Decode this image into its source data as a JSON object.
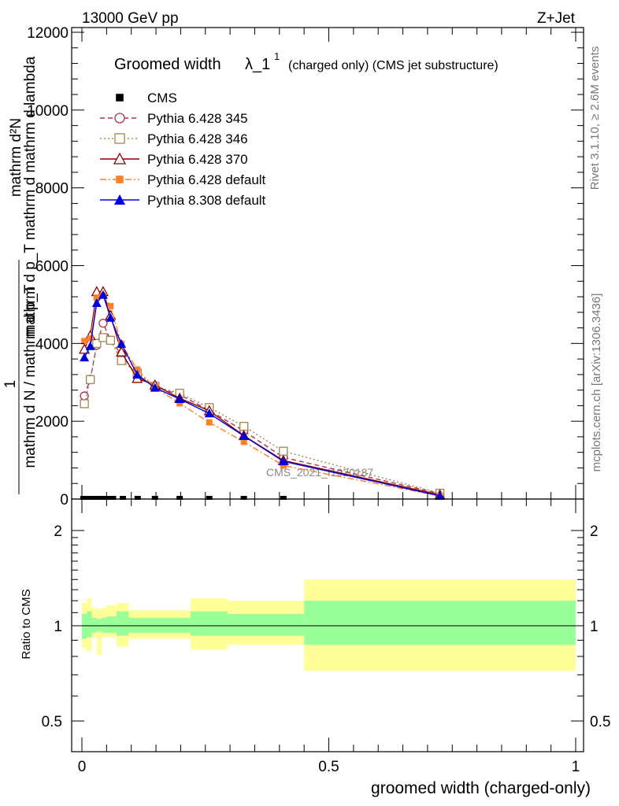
{
  "header": {
    "left": "13000 GeV pp",
    "right": "Z+Jet"
  },
  "side_labels": {
    "rivet": "Rivet 3.1.10, ≥ 2.6M events",
    "mcplots": "mcplots.cern.ch [arXiv:1306.3436]"
  },
  "watermark": "CMS_2021_I1920187",
  "chart_data": [
    {
      "type": "line",
      "title": "Groomed width",
      "title_symbol": "λ_1",
      "title_superscript": "1",
      "title_suffix": "(charged only) (CMS jet substructure)",
      "ylabel_top": "mathrm d²N",
      "ylabel_mid": "mathrm d p_T mathrm d mathrm d lambda",
      "ylabel_one": "1",
      "ylabel_bottom": "mathrm d N / mathrm d p_T",
      "yticks": [
        "0",
        "2000",
        "4000",
        "6000",
        "8000",
        "10000",
        "12000"
      ],
      "ylim": [
        0,
        12000
      ],
      "xlim": [
        -0.02,
        1.03
      ],
      "legend_position": "top-left",
      "series": [
        {
          "name": "CMS",
          "color": "#000000",
          "marker": "square-filled",
          "line": "none",
          "x": [
            0.003,
            0.013,
            0.023,
            0.033,
            0.043,
            0.053,
            0.063,
            0.083,
            0.113,
            0.148,
            0.198,
            0.258,
            0.328,
            0.408
          ],
          "y": [
            0,
            0,
            0,
            0,
            0,
            0,
            0,
            0,
            0,
            0,
            0,
            0,
            0,
            0
          ]
        },
        {
          "name": "Pythia 6.428 345",
          "color": "#b03050",
          "marker": "circle-open",
          "line": "dash",
          "x": [
            0.005,
            0.017,
            0.03,
            0.043,
            0.058,
            0.08,
            0.112,
            0.148,
            0.198,
            0.258,
            0.328,
            0.408,
            0.725
          ],
          "y": [
            2650,
            3080,
            3950,
            4520,
            4080,
            3720,
            3150,
            2890,
            2680,
            2280,
            1750,
            1070,
            140
          ]
        },
        {
          "name": "Pythia 6.428 346",
          "color": "#a08850",
          "marker": "square-open",
          "line": "dot",
          "x": [
            0.005,
            0.017,
            0.03,
            0.043,
            0.058,
            0.08,
            0.112,
            0.148,
            0.198,
            0.258,
            0.328,
            0.408,
            0.725
          ],
          "y": [
            2450,
            3070,
            4000,
            4150,
            4080,
            3560,
            3240,
            2900,
            2720,
            2350,
            1870,
            1230,
            150
          ]
        },
        {
          "name": "Pythia 6.428 370",
          "color": "#8b0000",
          "marker": "triangle-open",
          "line": "solid",
          "x": [
            0.005,
            0.017,
            0.03,
            0.043,
            0.058,
            0.08,
            0.112,
            0.148,
            0.198,
            0.258,
            0.328,
            0.408,
            0.725
          ],
          "y": [
            3850,
            4200,
            5330,
            5330,
            4720,
            3780,
            3100,
            2930,
            2590,
            2270,
            1630,
            990,
            110
          ]
        },
        {
          "name": "Pythia 6.428 default",
          "color": "#ff7f2a",
          "marker": "square-filled",
          "line": "dashdot",
          "x": [
            0.005,
            0.017,
            0.03,
            0.043,
            0.058,
            0.08,
            0.112,
            0.148,
            0.198,
            0.258,
            0.328,
            0.408,
            0.725
          ],
          "y": [
            4060,
            4130,
            5180,
            5230,
            4960,
            3990,
            3330,
            2860,
            2460,
            1970,
            1470,
            860,
            80
          ]
        },
        {
          "name": "Pythia 8.308 default",
          "color": "#0000dd",
          "marker": "triangle-filled",
          "line": "solid",
          "x": [
            0.005,
            0.017,
            0.03,
            0.043,
            0.058,
            0.08,
            0.112,
            0.148,
            0.198,
            0.258,
            0.328,
            0.408,
            0.725
          ],
          "y": [
            3640,
            3930,
            5040,
            5250,
            4660,
            3990,
            3200,
            2860,
            2570,
            2200,
            1620,
            970,
            80
          ]
        }
      ]
    },
    {
      "type": "area",
      "ylabel": "Ratio to CMS",
      "xlabel": "groomed width (charged-only)",
      "yticks": [
        "0.5",
        "1",
        "2"
      ],
      "xticks": [
        "0",
        "0.5",
        "1"
      ],
      "ylim": [
        0.42,
        2.35
      ],
      "y_scale": "log",
      "xlim": [
        -0.02,
        1.03
      ],
      "reference_line": 1,
      "bins": [
        0,
        0.01,
        0.02,
        0.03,
        0.04,
        0.05,
        0.07,
        0.095,
        0.13,
        0.22,
        0.295,
        0.45,
        1.0
      ],
      "band_inner": {
        "color": "#99ff99",
        "lower": [
          0.91,
          0.92,
          0.95,
          0.96,
          0.95,
          0.95,
          0.93,
          0.95,
          0.95,
          0.93,
          0.93,
          0.87
        ],
        "upper": [
          1.09,
          1.11,
          1.06,
          1.05,
          1.06,
          1.07,
          1.11,
          1.06,
          1.06,
          1.11,
          1.09,
          1.2
        ]
      },
      "band_outer": {
        "color": "#ffff99",
        "lower": [
          0.85,
          0.83,
          0.92,
          0.81,
          0.92,
          0.92,
          0.86,
          0.91,
          0.91,
          0.84,
          0.87,
          0.72
        ],
        "upper": [
          1.18,
          1.22,
          1.14,
          1.13,
          1.14,
          1.16,
          1.18,
          1.12,
          1.12,
          1.22,
          1.2,
          1.4
        ]
      }
    }
  ]
}
